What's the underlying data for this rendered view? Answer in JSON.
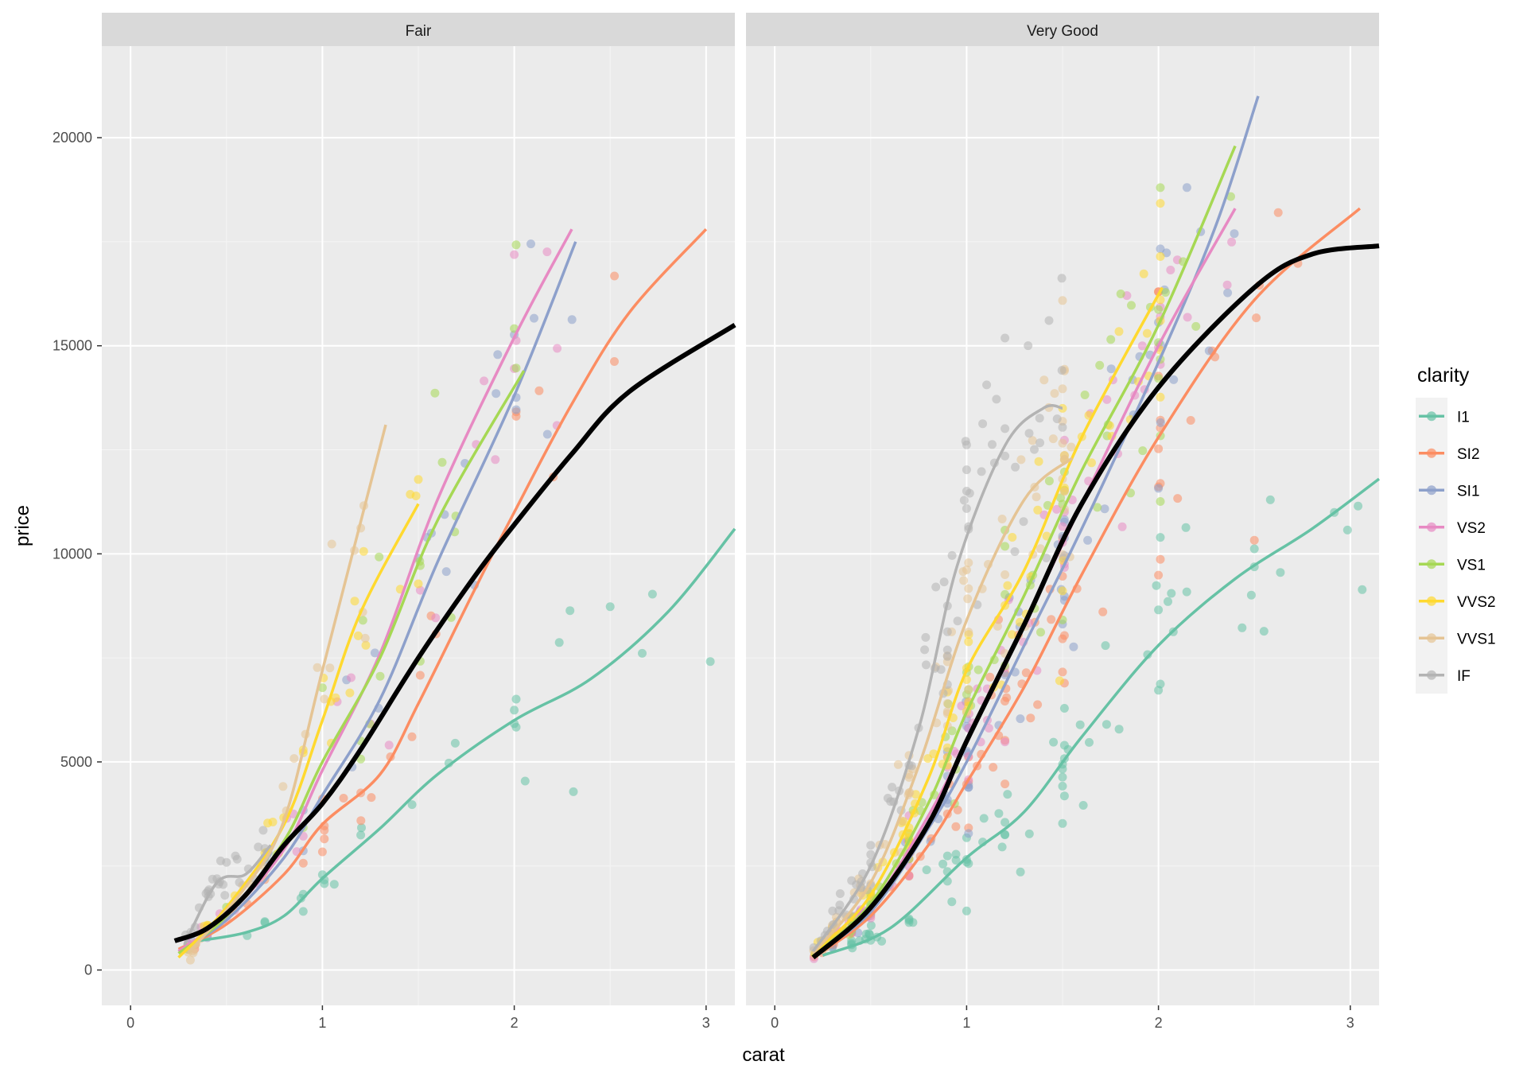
{
  "chart_data": {
    "type": "scatter",
    "xlabel": "carat",
    "ylabel": "price",
    "xlim": [
      -0.15,
      3.15
    ],
    "ylim": [
      -850,
      22200
    ],
    "x_ticks": [
      0,
      1,
      2,
      3
    ],
    "y_ticks": [
      0,
      5000,
      10000,
      15000,
      20000
    ],
    "x_tick_labels": [
      "0",
      "1",
      "2",
      "3"
    ],
    "y_tick_labels": [
      "0",
      "5000",
      "10000",
      "15000",
      "20000"
    ],
    "grid": true,
    "legend_title": "clarity",
    "legend_position": "right",
    "series": [
      {
        "name": "I1",
        "color": "#66c2a5"
      },
      {
        "name": "SI2",
        "color": "#fc8d62"
      },
      {
        "name": "SI1",
        "color": "#8da0cb"
      },
      {
        "name": "VS2",
        "color": "#e78ac3"
      },
      {
        "name": "VS1",
        "color": "#a6d854"
      },
      {
        "name": "VVS2",
        "color": "#ffd92f"
      },
      {
        "name": "VVS1",
        "color": "#e5c494"
      },
      {
        "name": "IF",
        "color": "#b3b3b3"
      }
    ],
    "overall_trend_color": "#000000",
    "panels": [
      {
        "label": "Fair",
        "overall": [
          [
            0.23,
            700
          ],
          [
            0.4,
            1000
          ],
          [
            0.6,
            1800
          ],
          [
            0.8,
            3000
          ],
          [
            1.0,
            4000
          ],
          [
            1.2,
            5300
          ],
          [
            1.5,
            7500
          ],
          [
            1.8,
            9500
          ],
          [
            2.0,
            10700
          ],
          [
            2.3,
            12400
          ],
          [
            2.6,
            13900
          ],
          [
            3.15,
            15500
          ]
        ],
        "smooths": {
          "I1": [
            [
              0.35,
              700
            ],
            [
              0.6,
              900
            ],
            [
              0.8,
              1300
            ],
            [
              1.0,
              2200
            ],
            [
              1.3,
              3400
            ],
            [
              1.6,
              4700
            ],
            [
              2.0,
              6000
            ],
            [
              2.4,
              7000
            ],
            [
              2.8,
              8600
            ],
            [
              3.15,
              10600
            ]
          ],
          "SI2": [
            [
              0.25,
              500
            ],
            [
              0.5,
              1100
            ],
            [
              0.8,
              2300
            ],
            [
              1.0,
              3500
            ],
            [
              1.3,
              4700
            ],
            [
              1.5,
              6400
            ],
            [
              1.8,
              9200
            ],
            [
              2.0,
              11000
            ],
            [
              2.3,
              13600
            ],
            [
              2.6,
              15800
            ],
            [
              3.0,
              17800
            ]
          ],
          "SI1": [
            [
              0.25,
              450
            ],
            [
              0.5,
              1200
            ],
            [
              0.8,
              2700
            ],
            [
              1.0,
              4200
            ],
            [
              1.3,
              6500
            ],
            [
              1.6,
              9800
            ],
            [
              2.0,
              13800
            ],
            [
              2.32,
              17500
            ]
          ],
          "VS2": [
            [
              0.25,
              450
            ],
            [
              0.5,
              1300
            ],
            [
              0.8,
              2900
            ],
            [
              1.0,
              4800
            ],
            [
              1.3,
              7600
            ],
            [
              1.6,
              11300
            ],
            [
              2.0,
              15200
            ],
            [
              2.3,
              17800
            ]
          ],
          "VS1": [
            [
              0.25,
              400
            ],
            [
              0.5,
              1300
            ],
            [
              0.8,
              3100
            ],
            [
              1.0,
              5000
            ],
            [
              1.3,
              7500
            ],
            [
              1.6,
              10800
            ],
            [
              2.05,
              14400
            ]
          ],
          "VVS2": [
            [
              0.25,
              300
            ],
            [
              0.5,
              1500
            ],
            [
              0.8,
              3500
            ],
            [
              1.0,
              6000
            ],
            [
              1.2,
              8600
            ],
            [
              1.5,
              11200
            ]
          ],
          "VVS1": [
            [
              0.3,
              400
            ],
            [
              0.6,
              2000
            ],
            [
              0.8,
              3600
            ],
            [
              1.0,
              7200
            ],
            [
              1.33,
              13100
            ]
          ],
          "IF": [
            [
              0.28,
              600
            ],
            [
              0.45,
              2100
            ],
            [
              0.6,
              2300
            ],
            [
              0.73,
              3000
            ]
          ]
        }
      },
      {
        "label": "Very Good",
        "overall": [
          [
            0.2,
            300
          ],
          [
            0.5,
            1500
          ],
          [
            0.8,
            3500
          ],
          [
            1.0,
            5500
          ],
          [
            1.3,
            8300
          ],
          [
            1.6,
            11200
          ],
          [
            2.0,
            14000
          ],
          [
            2.5,
            16400
          ],
          [
            2.8,
            17200
          ],
          [
            3.15,
            17400
          ]
        ],
        "smooths": {
          "I1": [
            [
              0.25,
              350
            ],
            [
              0.6,
              1000
            ],
            [
              1.0,
              2700
            ],
            [
              1.3,
              3800
            ],
            [
              1.6,
              5600
            ],
            [
              2.0,
              7800
            ],
            [
              2.4,
              9400
            ],
            [
              2.8,
              10600
            ],
            [
              3.15,
              11800
            ]
          ],
          "SI2": [
            [
              0.2,
              300
            ],
            [
              0.5,
              1300
            ],
            [
              0.8,
              3000
            ],
            [
              1.0,
              4500
            ],
            [
              1.3,
              6800
            ],
            [
              1.6,
              9500
            ],
            [
              2.0,
              12800
            ],
            [
              2.5,
              16100
            ],
            [
              3.05,
              18300
            ]
          ],
          "SI1": [
            [
              0.2,
              350
            ],
            [
              0.5,
              1400
            ],
            [
              0.8,
              3400
            ],
            [
              1.0,
              5000
            ],
            [
              1.3,
              7800
            ],
            [
              1.6,
              10600
            ],
            [
              2.0,
              14600
            ],
            [
              2.3,
              17900
            ],
            [
              2.52,
              21000
            ]
          ],
          "VS2": [
            [
              0.2,
              350
            ],
            [
              0.5,
              1500
            ],
            [
              0.8,
              3700
            ],
            [
              1.0,
              5500
            ],
            [
              1.3,
              8300
            ],
            [
              1.6,
              11200
            ],
            [
              2.0,
              15000
            ],
            [
              2.4,
              18300
            ]
          ],
          "VS1": [
            [
              0.2,
              350
            ],
            [
              0.5,
              1600
            ],
            [
              0.8,
              4000
            ],
            [
              1.0,
              6200
            ],
            [
              1.3,
              9000
            ],
            [
              1.6,
              12000
            ],
            [
              2.0,
              15500
            ],
            [
              2.4,
              19800
            ]
          ],
          "VVS2": [
            [
              0.2,
              400
            ],
            [
              0.5,
              1800
            ],
            [
              0.8,
              4600
            ],
            [
              1.0,
              7200
            ],
            [
              1.3,
              9600
            ],
            [
              1.6,
              12800
            ],
            [
              2.02,
              16400
            ]
          ],
          "VVS1": [
            [
              0.2,
              400
            ],
            [
              0.5,
              2100
            ],
            [
              0.75,
              4900
            ],
            [
              1.0,
              8400
            ],
            [
              1.3,
              11300
            ],
            [
              1.55,
              12300
            ]
          ],
          "IF": [
            [
              0.2,
              450
            ],
            [
              0.5,
              2500
            ],
            [
              0.75,
              5800
            ],
            [
              0.95,
              9700
            ],
            [
              1.2,
              12600
            ],
            [
              1.4,
              13500
            ],
            [
              1.5,
              13500
            ]
          ]
        }
      }
    ]
  }
}
